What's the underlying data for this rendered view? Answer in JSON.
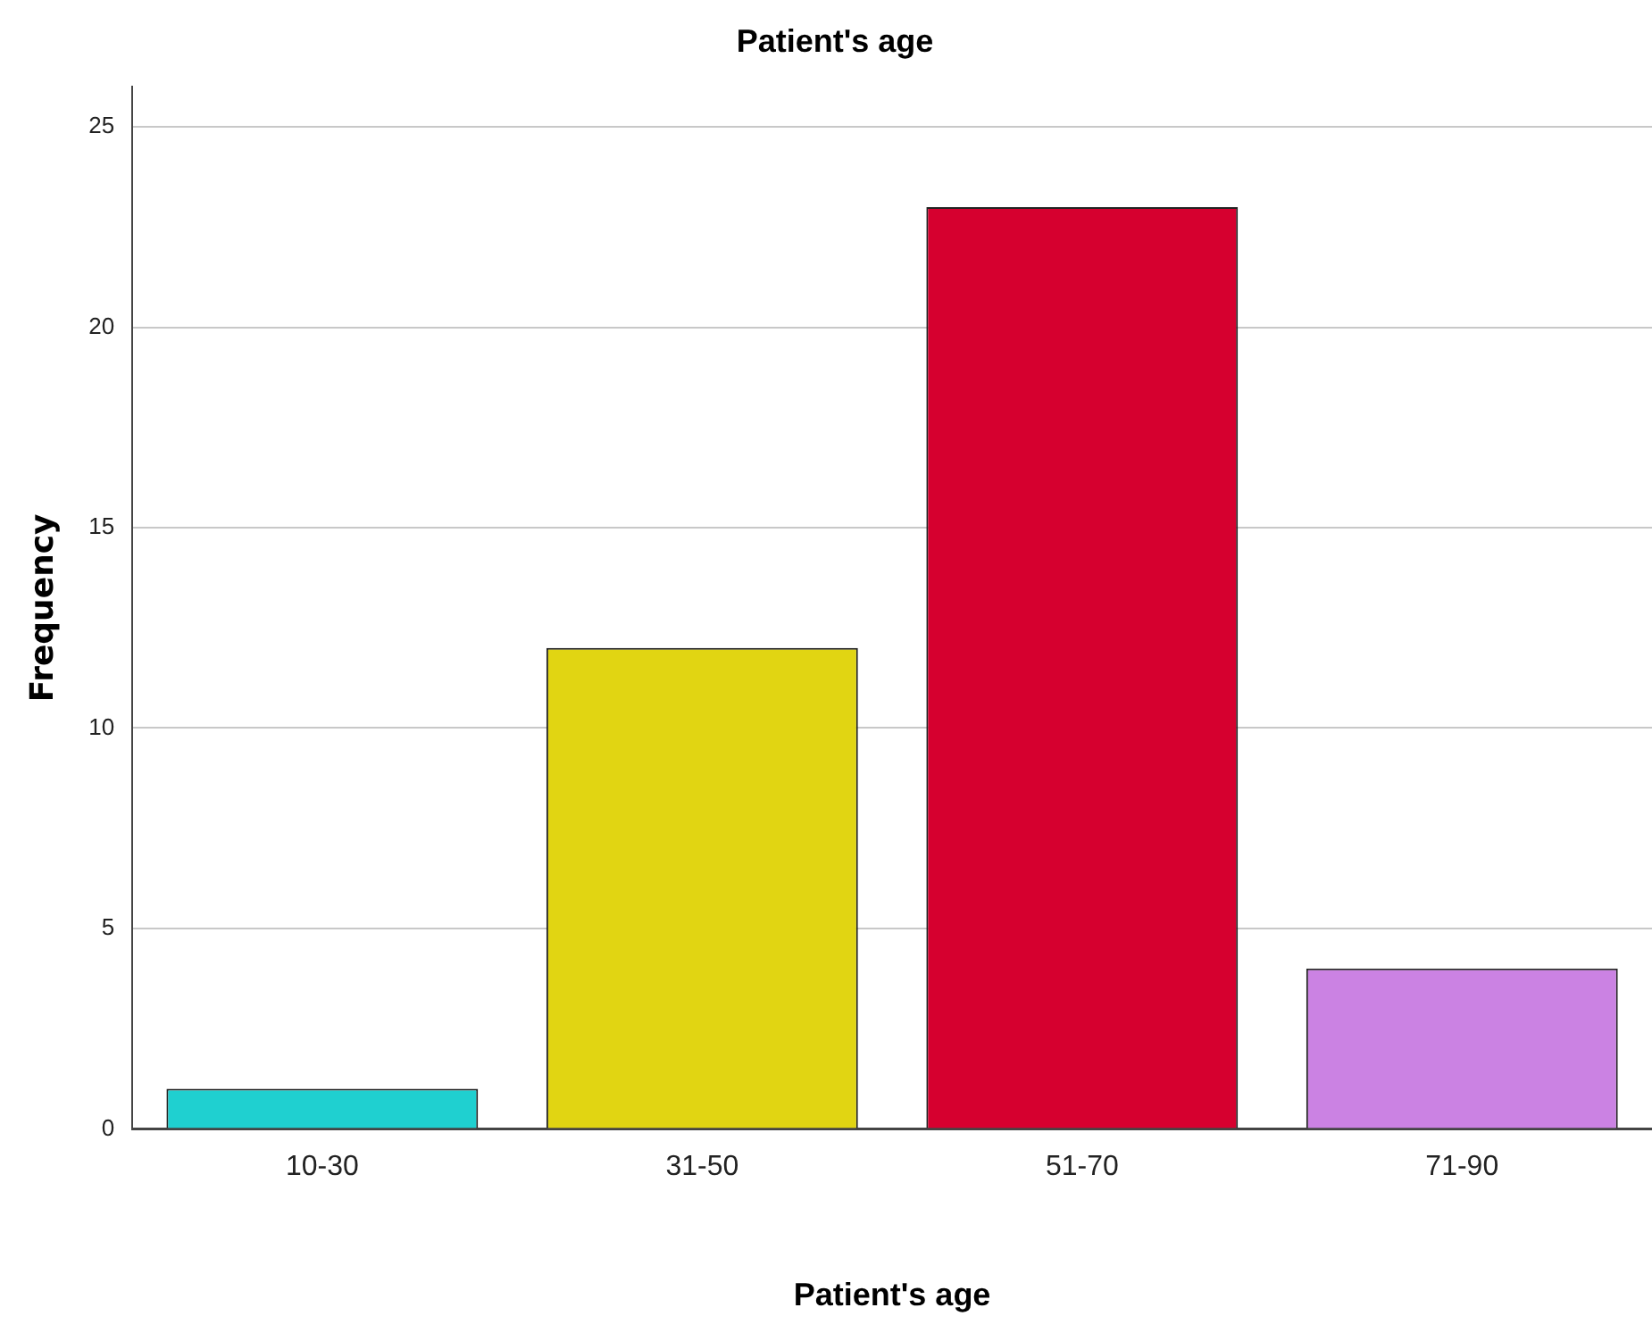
{
  "chart_data": {
    "type": "bar",
    "title": "Patient's age",
    "xlabel": "Patient's age",
    "ylabel": "Frequency",
    "categories": [
      "10-30",
      "31-50",
      "51-70",
      "71-90"
    ],
    "values": [
      1,
      12,
      23,
      4
    ],
    "colors": [
      "#1fd0d0",
      "#e1d512",
      "#d6002f",
      "#cb82e3"
    ],
    "ylim": [
      0,
      26
    ],
    "yticks": [
      0,
      5,
      10,
      15,
      20,
      25
    ],
    "grid": "y",
    "legend": false
  }
}
